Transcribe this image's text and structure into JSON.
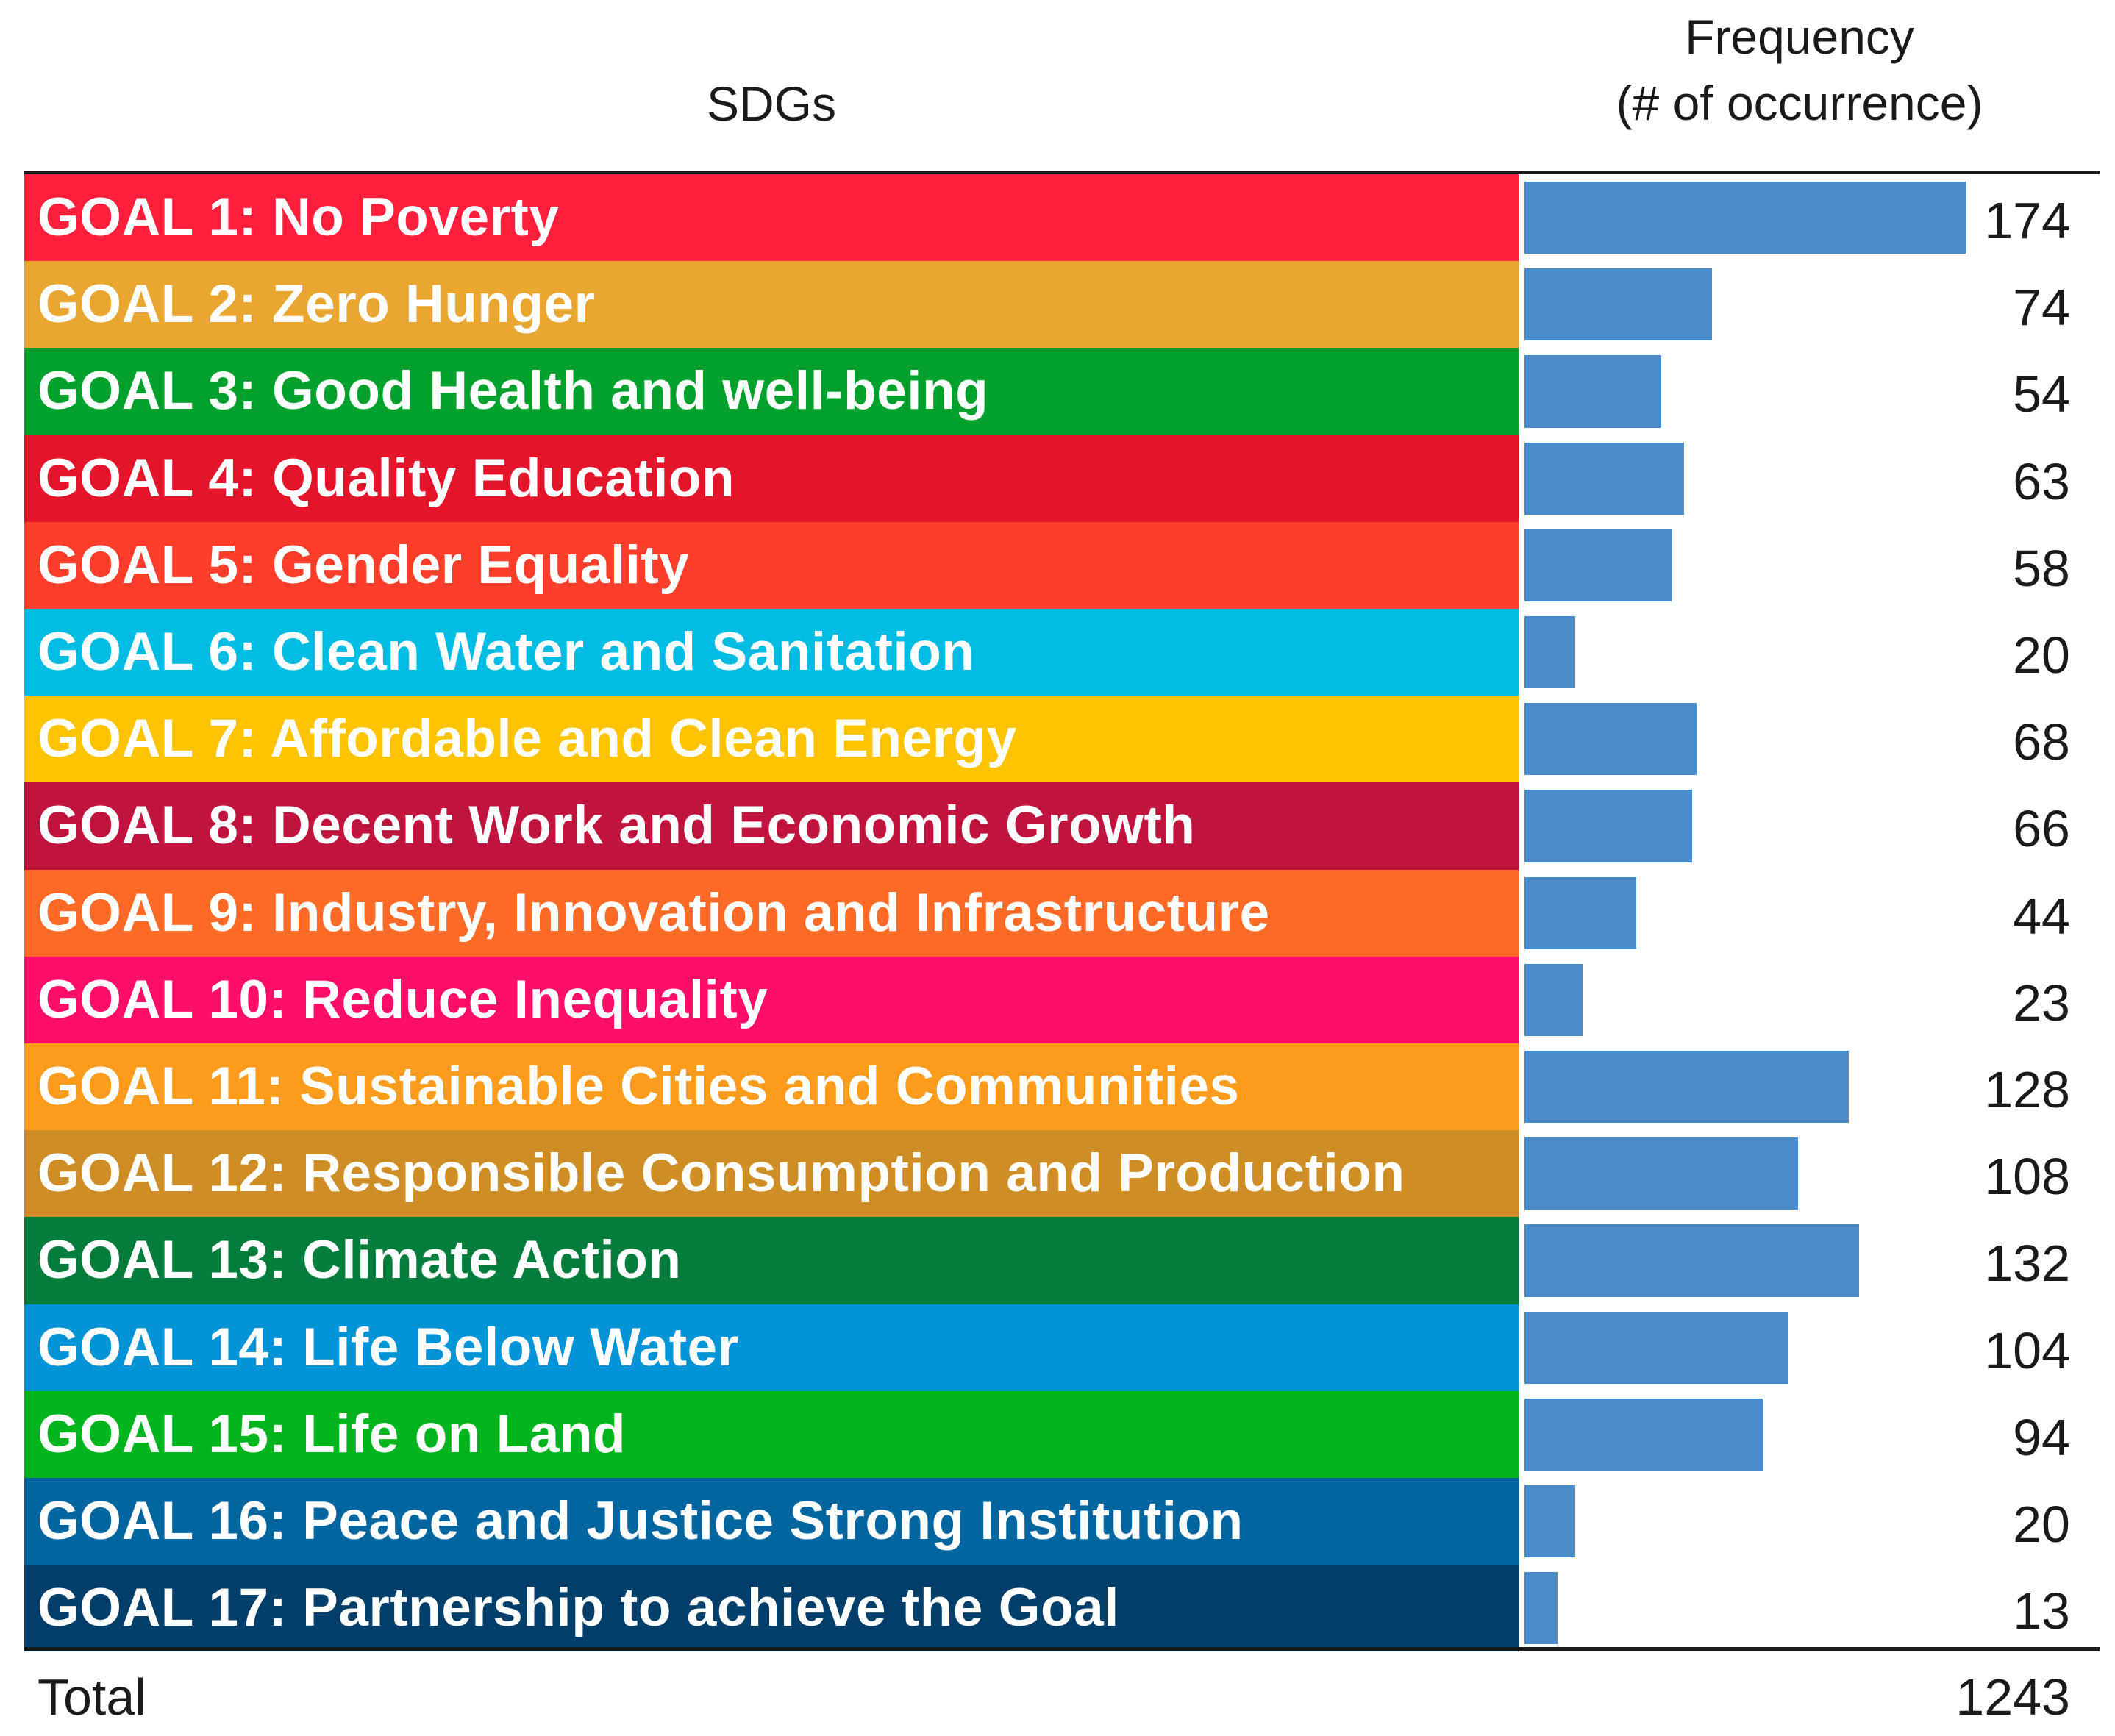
{
  "chart_data": {
    "type": "bar",
    "orientation": "horizontal",
    "xlabel": "Frequency\n(# of occurrence)",
    "headers": {
      "category_col": "SDGs",
      "value_col_line1": "Frequency",
      "value_col_line2": "(# of occurrence)"
    },
    "categories": [
      "GOAL 1: No Poverty",
      "GOAL 2: Zero Hunger",
      "GOAL 3: Good Health and well-being",
      "GOAL 4: Quality Education",
      "GOAL 5: Gender Equality",
      "GOAL 6: Clean Water and Sanitation",
      "GOAL 7: Affordable and Clean Energy",
      "GOAL 8: Decent Work and Economic Growth",
      "GOAL 9: Industry, Innovation and Infrastructure",
      "GOAL 10: Reduce Inequality",
      "GOAL 11: Sustainable Cities and Communities",
      "GOAL 12: Responsible Consumption and Production",
      "GOAL 13: Climate Action",
      "GOAL 14: Life Below Water",
      "GOAL 15: Life on Land",
      "GOAL 16: Peace and Justice Strong Institution",
      "GOAL 17: Partnership to achieve the Goal"
    ],
    "values": [
      174,
      74,
      54,
      63,
      58,
      20,
      68,
      66,
      44,
      23,
      128,
      108,
      132,
      104,
      94,
      20,
      13
    ],
    "value_labels": [
      "174",
      "74",
      "54",
      "63",
      "58",
      "20",
      "68",
      "66",
      "44",
      "23",
      "128",
      "108",
      "132",
      "104",
      "94",
      "20",
      "13"
    ],
    "category_colors": [
      "#ff1f3d",
      "#e9a631",
      "#02a12d",
      "#e4152b",
      "#fe3e2a",
      "#02bde3",
      "#ffc401",
      "#c0143e",
      "#ff6b27",
      "#fe0d69",
      "#fd9b1c",
      "#ce8e25",
      "#047c3c",
      "#0294d6",
      "#02b51f",
      "#01659f",
      "#013e69"
    ],
    "bar_color": "#4a8bc9",
    "xlim": [
      0,
      174
    ],
    "total_label": "Total",
    "total_value": "1243"
  }
}
